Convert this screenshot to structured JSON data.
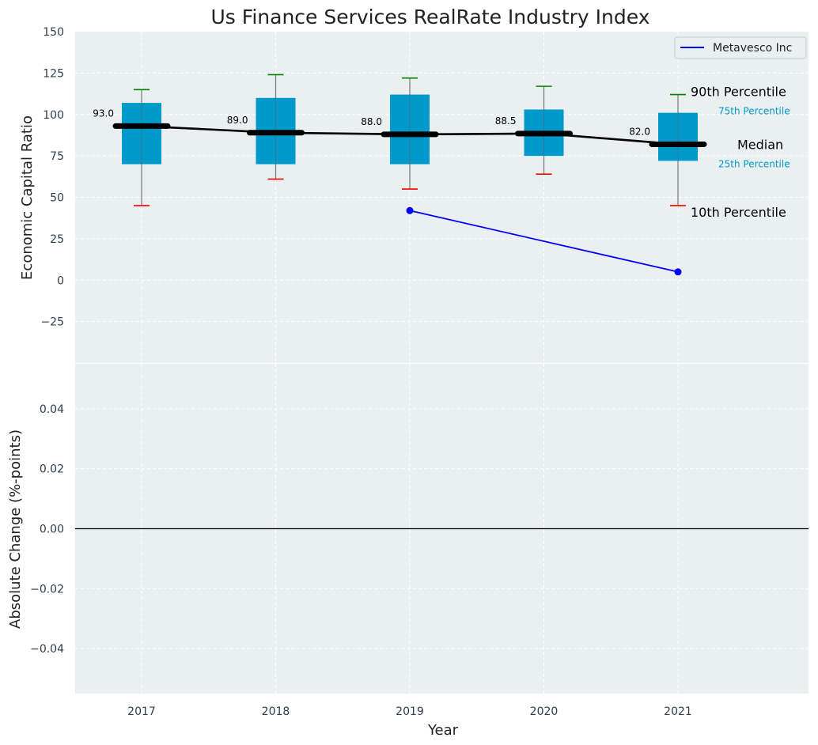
{
  "chart_data": {
    "type": "box",
    "title": "Us Finance Services RealRate Industry Index",
    "xlabel": "Year",
    "categories": [
      "2017",
      "2018",
      "2019",
      "2020",
      "2021"
    ],
    "colors": {
      "background": "#eaeff0",
      "box": "#0099cc",
      "median": "#000000",
      "p90_cap": "#008000",
      "p10_cap": "#ff0000",
      "company": "#0000ff",
      "percentile_small_label": "#0099cc"
    },
    "top_panel": {
      "ylabel": "Economic Capital Ratio",
      "ylim": [
        -50,
        150
      ],
      "yticks": [
        "150",
        "125",
        "100",
        "75",
        "50",
        "25",
        "0",
        "−25"
      ],
      "ytick_values": [
        150,
        125,
        100,
        75,
        50,
        25,
        0,
        -25
      ],
      "grid": true,
      "legend_position": "top-right",
      "percentiles": {
        "p10": [
          45,
          61,
          55,
          64,
          45
        ],
        "p25": [
          70,
          70,
          70,
          75,
          72
        ],
        "median": [
          93.0,
          89.0,
          88.0,
          88.5,
          82.0
        ],
        "p75": [
          107,
          110,
          112,
          103,
          101
        ],
        "p90": [
          115,
          124,
          122,
          117,
          112
        ]
      },
      "median_labels": [
        "93.0",
        "89.0",
        "88.0",
        "88.5",
        "82.0"
      ],
      "series": [
        {
          "name": "Metavesco Inc",
          "x": [
            "2019",
            "2021"
          ],
          "values": [
            42,
            5
          ]
        }
      ],
      "annotations": {
        "p90": "90th Percentile",
        "p75": "75th Percentile",
        "median": "Median",
        "p25": "25th Percentile",
        "p10": "10th Percentile"
      }
    },
    "bottom_panel": {
      "ylabel": "Absolute Change (%-points)",
      "ylim": [
        -0.055,
        0.055
      ],
      "yticks": [
        "0.04",
        "0.02",
        "0.00",
        "−0.02",
        "−0.04"
      ],
      "ytick_values": [
        0.04,
        0.02,
        0.0,
        -0.02,
        -0.04
      ],
      "grid": true,
      "zero_line": true
    }
  }
}
